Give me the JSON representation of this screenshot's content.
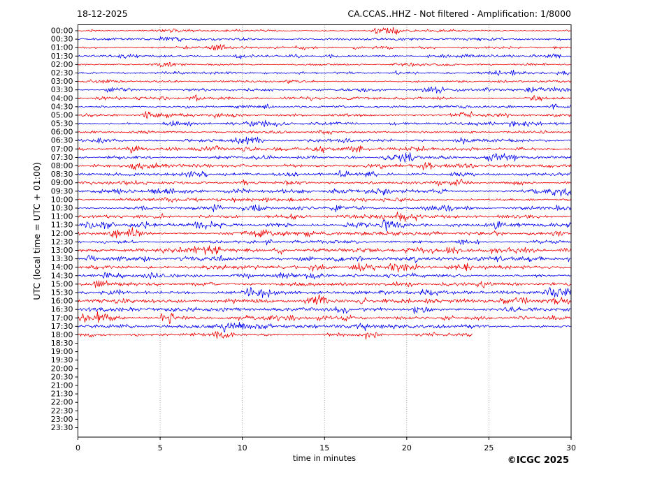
{
  "page": {
    "background": "#ffffff"
  },
  "chart_data": {
    "type": "line",
    "title_left": "18-12-2025",
    "title_right": "CA.CCAS..HHZ - Not filtered - Amplification: 1/8000",
    "xlabel": "time in minutes",
    "ylabel": "UTC (local time = UTC + 01:00)",
    "footer": "©ICGC 2025",
    "xlim": [
      0,
      30
    ],
    "x_ticks": [
      0,
      5,
      10,
      15,
      20,
      25,
      30
    ],
    "grid_minutes": [
      5,
      10,
      15,
      20,
      25
    ],
    "grid": true,
    "legend": "none",
    "colors": {
      "hour_trace": "#ee0000",
      "half_hour_trace": "#0000ee",
      "grid": "#888888",
      "axis": "#000000",
      "text": "#000000"
    },
    "rows": [
      {
        "label": "00:00",
        "color": "red",
        "end_minute": 30,
        "amp": 1.2
      },
      {
        "label": "00:30",
        "color": "blue",
        "end_minute": 30,
        "amp": 1.3
      },
      {
        "label": "01:00",
        "color": "red",
        "end_minute": 30,
        "amp": 1.2
      },
      {
        "label": "01:30",
        "color": "blue",
        "end_minute": 30,
        "amp": 1.4
      },
      {
        "label": "02:00",
        "color": "red",
        "end_minute": 30,
        "amp": 1.4
      },
      {
        "label": "02:30",
        "color": "blue",
        "end_minute": 30,
        "amp": 1.5
      },
      {
        "label": "03:00",
        "color": "red",
        "end_minute": 30,
        "amp": 1.3
      },
      {
        "label": "03:30",
        "color": "blue",
        "end_minute": 30,
        "amp": 1.4
      },
      {
        "label": "04:00",
        "color": "red",
        "end_minute": 30,
        "amp": 1.6
      },
      {
        "label": "04:30",
        "color": "blue",
        "end_minute": 30,
        "amp": 1.7
      },
      {
        "label": "05:00",
        "color": "red",
        "end_minute": 30,
        "amp": 1.8
      },
      {
        "label": "05:30",
        "color": "blue",
        "end_minute": 30,
        "amp": 1.6
      },
      {
        "label": "06:00",
        "color": "red",
        "end_minute": 30,
        "amp": 1.7
      },
      {
        "label": "06:30",
        "color": "blue",
        "end_minute": 30,
        "amp": 1.8
      },
      {
        "label": "07:00",
        "color": "red",
        "end_minute": 30,
        "amp": 2.0
      },
      {
        "label": "07:30",
        "color": "blue",
        "end_minute": 30,
        "amp": 1.9
      },
      {
        "label": "08:00",
        "color": "red",
        "end_minute": 30,
        "amp": 1.9
      },
      {
        "label": "08:30",
        "color": "blue",
        "end_minute": 30,
        "amp": 1.6
      },
      {
        "label": "09:00",
        "color": "red",
        "end_minute": 30,
        "amp": 1.7
      },
      {
        "label": "09:30",
        "color": "blue",
        "end_minute": 30,
        "amp": 2.2
      },
      {
        "label": "10:00",
        "color": "red",
        "end_minute": 30,
        "amp": 2.0
      },
      {
        "label": "10:30",
        "color": "blue",
        "end_minute": 30,
        "amp": 1.9
      },
      {
        "label": "11:00",
        "color": "red",
        "end_minute": 30,
        "amp": 1.8
      },
      {
        "label": "11:30",
        "color": "blue",
        "end_minute": 30,
        "amp": 2.3
      },
      {
        "label": "12:00",
        "color": "red",
        "end_minute": 30,
        "amp": 2.0
      },
      {
        "label": "12:30",
        "color": "blue",
        "end_minute": 30,
        "amp": 1.9
      },
      {
        "label": "13:00",
        "color": "red",
        "end_minute": 30,
        "amp": 2.0
      },
      {
        "label": "13:30",
        "color": "blue",
        "end_minute": 30,
        "amp": 2.2
      },
      {
        "label": "14:00",
        "color": "red",
        "end_minute": 30,
        "amp": 2.2
      },
      {
        "label": "14:30",
        "color": "blue",
        "end_minute": 30,
        "amp": 2.0
      },
      {
        "label": "15:00",
        "color": "red",
        "end_minute": 30,
        "amp": 2.1
      },
      {
        "label": "15:30",
        "color": "blue",
        "end_minute": 30,
        "amp": 2.0
      },
      {
        "label": "16:00",
        "color": "red",
        "end_minute": 30,
        "amp": 2.2
      },
      {
        "label": "16:30",
        "color": "blue",
        "end_minute": 30,
        "amp": 2.0
      },
      {
        "label": "17:00",
        "color": "red",
        "end_minute": 30,
        "amp": 2.4
      },
      {
        "label": "17:30",
        "color": "blue",
        "end_minute": 30,
        "amp": 2.1
      },
      {
        "label": "18:00",
        "color": "red",
        "end_minute": 24,
        "amp": 2.0
      },
      {
        "label": "18:30",
        "color": "blue",
        "end_minute": 0,
        "amp": 0
      },
      {
        "label": "19:00",
        "color": "red",
        "end_minute": 0,
        "amp": 0
      },
      {
        "label": "19:30",
        "color": "blue",
        "end_minute": 0,
        "amp": 0
      },
      {
        "label": "20:00",
        "color": "red",
        "end_minute": 0,
        "amp": 0
      },
      {
        "label": "20:30",
        "color": "blue",
        "end_minute": 0,
        "amp": 0
      },
      {
        "label": "21:00",
        "color": "red",
        "end_minute": 0,
        "amp": 0
      },
      {
        "label": "21:30",
        "color": "blue",
        "end_minute": 0,
        "amp": 0
      },
      {
        "label": "22:00",
        "color": "red",
        "end_minute": 0,
        "amp": 0
      },
      {
        "label": "22:30",
        "color": "blue",
        "end_minute": 0,
        "amp": 0
      },
      {
        "label": "23:00",
        "color": "red",
        "end_minute": 0,
        "amp": 0
      },
      {
        "label": "23:30",
        "color": "blue",
        "end_minute": 0,
        "amp": 0
      }
    ]
  }
}
